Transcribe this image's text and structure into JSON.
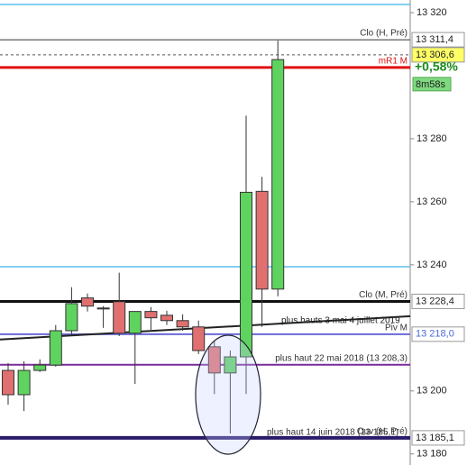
{
  "chart_data": {
    "type": "candlestick",
    "ylim": [
      13176.5,
      13324
    ],
    "yticks": [
      {
        "value": 13320,
        "label": "13 320"
      },
      {
        "value": 13280,
        "label": "13 280"
      },
      {
        "value": 13260,
        "label": "13 260"
      },
      {
        "value": 13240,
        "label": "13 240"
      },
      {
        "value": 13200,
        "label": "13 200"
      },
      {
        "value": 13180,
        "label": "13 180"
      }
    ],
    "open": [
      13206.5,
      13198.8,
      13206.5,
      13208.2,
      13219.1,
      13229.5,
      13226.3,
      13228.3,
      13218.3,
      13225.2,
      13224.0,
      13222.3,
      13220.3,
      13214.0,
      13205.7,
      13210.8,
      13263.3,
      13232.3
    ],
    "high": [
      13208.8,
      13209.4,
      13210.0,
      13220.9,
      13232.9,
      13230.9,
      13226.9,
      13237.5,
      13225.2,
      13226.6,
      13225.4,
      13224.3,
      13222.3,
      13215.7,
      13212.8,
      13287.3,
      13267.9,
      13311.1
    ],
    "low": [
      13195.6,
      13193.6,
      13206.0,
      13207.7,
      13218.0,
      13225.2,
      13220.0,
      13217.4,
      13202.2,
      13219.4,
      13220.9,
      13219.1,
      13211.7,
      13199.0,
      13186.5,
      13199.0,
      13220.3,
      13230.0
    ],
    "close": [
      13198.8,
      13206.5,
      13208.2,
      13219.1,
      13227.7,
      13226.9,
      13226.0,
      13218.3,
      13225.2,
      13223.2,
      13222.3,
      13220.3,
      13212.8,
      13205.7,
      13210.8,
      13263.0,
      13232.3,
      13305.1
    ],
    "up_color": "#5fd35f",
    "down_color": "#e07070",
    "levels": [
      {
        "value": 13322.6,
        "color": "#5bc0eb",
        "width": 1.5
      },
      {
        "value": 13311.4,
        "name": "Clo (H, Pré)",
        "value_label": "13 311,4",
        "color": "#333333",
        "width": 1
      },
      {
        "value": 13306.6,
        "value_label": "13 306,6",
        "color": "#555555",
        "width": 1,
        "dashed": true,
        "tag_fill": "#ffff66"
      },
      {
        "value": 13302.6,
        "name": "mR1 M",
        "color": "#e01010",
        "width": 3
      },
      {
        "value": 13239.4,
        "color": "#5bc0eb",
        "width": 1.5
      },
      {
        "value": 13228.4,
        "name": "Clo (M, Pré)",
        "value_label": "13 228,4",
        "color": "#111111",
        "width": 3
      },
      {
        "value": 13218.0,
        "name": "Piv M",
        "value_label": "13 218,0",
        "color": "#6a6ad8",
        "width": 2,
        "tag_text": "#4a6ad8"
      },
      {
        "value": 13208.3,
        "name": "plus haut 22 mai 2018 (13 208,3)",
        "color": "#7a2a9a",
        "width": 2
      },
      {
        "value": 13185.1,
        "name": "Ouv (H, Pré)",
        "note": "plus haut 14 juin 2018 (13 185,1)",
        "value_label": "13 185,1",
        "color": "#2a1a6a",
        "width": 4
      }
    ],
    "trendline": {
      "name": "plus hauts 3 mai 4 juillet 2019",
      "values": [
        13216.3,
        13223.7
      ],
      "color": "#222222"
    },
    "last_change": "+0,58%",
    "countdown": "8m58s"
  }
}
